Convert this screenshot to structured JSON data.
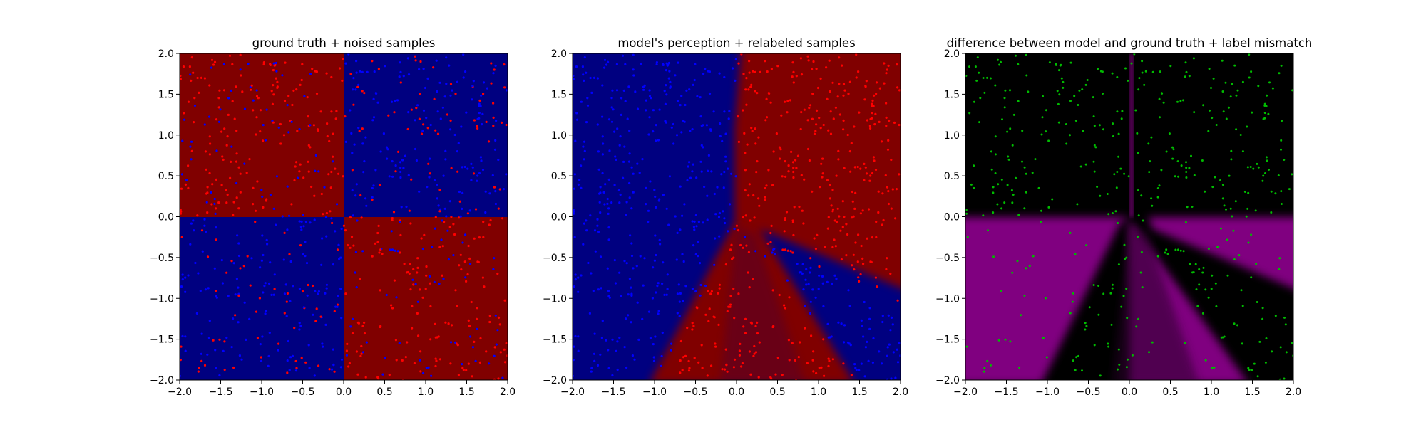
{
  "chart_data": [
    {
      "type": "scatter",
      "title": "ground truth + noised samples",
      "xlim": [
        -2,
        2
      ],
      "ylim": [
        -2,
        2
      ],
      "x_ticks": [
        "−2.0",
        "−1.5",
        "−1.0",
        "−0.5",
        "0.0",
        "0.5",
        "1.0",
        "1.5",
        "2.0"
      ],
      "y_ticks": [
        "−2.0",
        "−1.5",
        "−1.0",
        "−0.5",
        "0.0",
        "0.5",
        "1.0",
        "1.5",
        "2.0"
      ],
      "background": "checkerboard: red where x*y<0, blue where x*y>0",
      "point_colors": [
        "#ff0000",
        "#0000ff"
      ],
      "region_colors": [
        "#800000",
        "#000080"
      ],
      "grid": false
    },
    {
      "type": "scatter",
      "title": "model's perception + relabeled samples",
      "xlim": [
        -2,
        2
      ],
      "ylim": [
        -2,
        2
      ],
      "x_ticks": [
        "−2.0",
        "−1.5",
        "−1.0",
        "−0.5",
        "0.0",
        "0.5",
        "1.0",
        "1.5",
        "2.0"
      ],
      "y_ticks": [
        "−2.0",
        "−1.5",
        "−1.0",
        "−0.5",
        "0.0",
        "0.5",
        "1.0",
        "1.5",
        "2.0"
      ],
      "background": "learned decision regions (blue left/top-left, red top-right, red lower wedge, blue lower-right band)",
      "point_colors": [
        "#ff0000",
        "#0000ff"
      ],
      "region_colors": [
        "#800000",
        "#000080"
      ],
      "grid": false
    },
    {
      "type": "scatter",
      "title": "difference between model and ground truth + label mismatch",
      "xlim": [
        -2,
        2
      ],
      "ylim": [
        -2,
        2
      ],
      "x_ticks": [
        "−2.0",
        "−1.5",
        "−1.0",
        "−0.5",
        "0.0",
        "0.5",
        "1.0",
        "1.5",
        "2.0"
      ],
      "y_ticks": [
        "−2.0",
        "−1.5",
        "−1.0",
        "−0.5",
        "0.0",
        "0.5",
        "1.0",
        "1.5",
        "2.0"
      ],
      "background": "black where model agrees, purple where model disagrees with ground truth",
      "point_colors": [
        "#00bb00"
      ],
      "region_colors": [
        "#000000",
        "#800080"
      ],
      "grid": false
    }
  ]
}
